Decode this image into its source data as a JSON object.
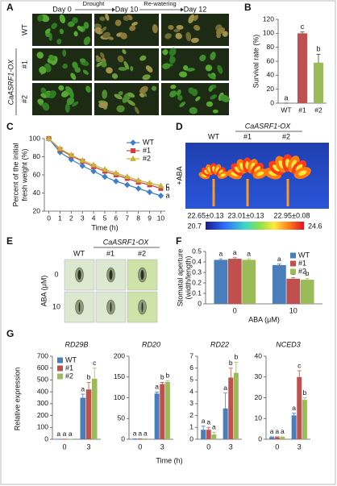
{
  "figure": {
    "panel_a": {
      "letter": "A",
      "days": [
        "Day 0",
        "Day 10",
        "Day 12"
      ],
      "treatments": [
        "Drought",
        "Re-watering"
      ],
      "rows": [
        "WT",
        "#1",
        "#2"
      ],
      "group": "CaASRF1-OX"
    },
    "panel_d": {
      "letter": "D",
      "group": "CaASRF1-OX",
      "columns": [
        "WT",
        "#1",
        "#2"
      ],
      "treatment": "+ABA",
      "temperatures": [
        "22.65±0.13",
        "23.01±0.13",
        "22.95±0.08"
      ],
      "colorbar": [
        20.7,
        24.6
      ]
    },
    "panel_e": {
      "letter": "E",
      "group": "CaASRF1-OX",
      "columns": [
        "WT",
        "#1",
        "#2"
      ],
      "y_label": "ABA (μM)",
      "rows": [
        "0",
        "10"
      ]
    }
  },
  "chart_data": [
    {
      "type": "bar",
      "panel": "B",
      "y_label": "Survival rate (%)",
      "categories": [
        "WT",
        "#1",
        "#2"
      ],
      "values": [
        0,
        100,
        58
      ],
      "errors": [
        0,
        2,
        12
      ],
      "colors": [
        "#4a7ebb",
        "#c0504d",
        "#9bbb59"
      ],
      "letters": [
        "a",
        "c",
        "b"
      ],
      "ylim": [
        0,
        120
      ],
      "yticks": [
        0,
        20,
        40,
        60,
        80,
        100,
        120
      ]
    },
    {
      "type": "line",
      "panel": "C",
      "y_label": [
        "Percent of the initial",
        "fresh weight (%)"
      ],
      "x_label": "Time (h)",
      "x": [
        0,
        1,
        2,
        3,
        4,
        5,
        6,
        7,
        8,
        9,
        10
      ],
      "series": [
        {
          "name": "WT",
          "color": "#3f7fc8",
          "marker": "diamond",
          "values": [
            100,
            85,
            77,
            70,
            64,
            58,
            53,
            49,
            45,
            41,
            37
          ],
          "letter": "a"
        },
        {
          "name": "#1",
          "color": "#d04040",
          "marker": "square",
          "values": [
            100,
            88,
            81,
            75,
            69,
            64,
            60,
            56,
            52,
            49,
            45
          ],
          "letter": "b"
        },
        {
          "name": "#2",
          "color": "#c8b23a",
          "marker": "triangle",
          "values": [
            100,
            89,
            82,
            76,
            71,
            66,
            62,
            58,
            54,
            51,
            48
          ],
          "letter": "c"
        }
      ],
      "xlim": [
        -0.4,
        10.4
      ],
      "xticks": [
        0,
        1,
        2,
        3,
        4,
        5,
        6,
        7,
        8,
        9,
        10
      ],
      "ylim": [
        20,
        100
      ],
      "yticks": [
        20,
        40,
        60,
        80,
        100
      ],
      "legend": "top-right"
    },
    {
      "type": "grouped-bar",
      "panel": "F",
      "y_label": [
        "Stomatal aperture",
        "(width/length)"
      ],
      "x_label": "ABA (μM)",
      "categories": [
        "0",
        "10"
      ],
      "series": [
        {
          "name": "WT",
          "color": "#4a7ebb",
          "values": [
            0.42,
            0.37
          ],
          "errors": [
            0.01,
            0.01
          ],
          "letters": [
            "a",
            "a"
          ]
        },
        {
          "name": "#1",
          "color": "#c0504d",
          "values": [
            0.43,
            0.24
          ],
          "errors": [
            0.01,
            0.01
          ],
          "letters": [
            "a",
            "b"
          ]
        },
        {
          "name": "#2",
          "color": "#9bbb59",
          "values": [
            0.42,
            0.23
          ],
          "errors": [
            0.01,
            0.01
          ],
          "letters": [
            "a",
            "b"
          ]
        }
      ],
      "ylim": [
        0,
        0.5
      ],
      "yticks": [
        0,
        0.1,
        0.2,
        0.3,
        0.4,
        0.5
      ],
      "legend": "top-right"
    },
    {
      "type": "grouped-bar-panels",
      "panel": "G",
      "y_label": "Relative expression",
      "x_label": "Time (h)",
      "categories": [
        "0",
        "3"
      ],
      "series": [
        {
          "name": "WT",
          "color": "#4a7ebb"
        },
        {
          "name": "#1",
          "color": "#c0504d"
        },
        {
          "name": "#2",
          "color": "#9bbb59"
        }
      ],
      "legend": "top-left",
      "subplots": [
        {
          "title": "RD29B",
          "ylim": [
            0,
            700
          ],
          "yticks": [
            0,
            100,
            200,
            300,
            400,
            500,
            600,
            700
          ],
          "values": [
            [
              1,
              350
            ],
            [
              1,
              420
            ],
            [
              1,
              510
            ]
          ],
          "errors": [
            [
              0,
              30
            ],
            [
              0,
              60
            ],
            [
              0,
              90
            ]
          ],
          "letters": [
            [
              "a",
              "a"
            ],
            [
              "a",
              "b"
            ],
            [
              "a",
              "c"
            ]
          ]
        },
        {
          "title": "RD20",
          "ylim": [
            0,
            200
          ],
          "yticks": [
            0,
            50,
            100,
            150,
            200
          ],
          "values": [
            [
              1,
              110
            ],
            [
              1,
              133
            ],
            [
              1,
              138
            ]
          ],
          "errors": [
            [
              0,
              4
            ],
            [
              0,
              4
            ],
            [
              0,
              3
            ]
          ],
          "letters": [
            [
              "a",
              "a"
            ],
            [
              "a",
              "b"
            ],
            [
              "a",
              "b"
            ]
          ]
        },
        {
          "title": "RD22",
          "ylim": [
            0,
            7
          ],
          "yticks": [
            0,
            1,
            2,
            3,
            4,
            5,
            6,
            7
          ],
          "values": [
            [
              0.8,
              2.6
            ],
            [
              0.8,
              5.2
            ],
            [
              0.4,
              5.6
            ]
          ],
          "errors": [
            [
              0.3,
              1.3
            ],
            [
              0.2,
              0.8
            ],
            [
              0.2,
              0.9
            ]
          ],
          "letters": [
            [
              "a",
              "a"
            ],
            [
              "a",
              "b"
            ],
            [
              "a",
              "b"
            ]
          ]
        },
        {
          "title": "NCED3",
          "ylim": [
            0,
            40
          ],
          "yticks": [
            0,
            10,
            20,
            30,
            40
          ],
          "values": [
            [
              1,
              11.5
            ],
            [
              1,
              30
            ],
            [
              1,
              19
            ]
          ],
          "errors": [
            [
              0.2,
              1
            ],
            [
              0.2,
              3
            ],
            [
              0.2,
              1
            ]
          ],
          "letters": [
            [
              "a",
              "a"
            ],
            [
              "a",
              "c"
            ],
            [
              "a",
              "b"
            ]
          ]
        }
      ]
    }
  ]
}
